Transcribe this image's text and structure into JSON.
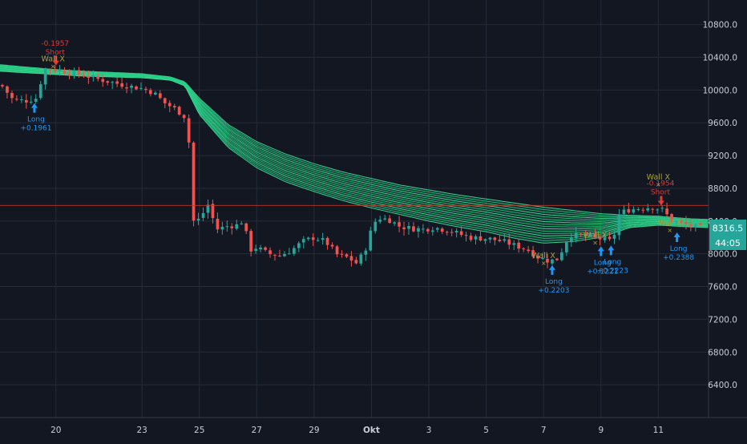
{
  "colors": {
    "background": "#131722",
    "grid": "#262b38",
    "up": "#26a69a",
    "down": "#ef5350",
    "ribbon": "#21c47d",
    "ribbon_light": "#3ee39a",
    "axis_text": "#c9cdd6",
    "price_line": "#c0392b",
    "long_label": "#2196f3",
    "short_label": "#e53935",
    "wall_label": "#a8a23a",
    "last_price_bg": "#26a69a"
  },
  "chart_data": {
    "type": "candlestick",
    "title": "",
    "ylim": [
      6000,
      11100
    ],
    "y_ticks": [
      {
        "value": 10800,
        "label": "10800.0"
      },
      {
        "value": 10400,
        "label": "10400.0"
      },
      {
        "value": 10000,
        "label": "10000.0"
      },
      {
        "value": 9600,
        "label": "9600.0"
      },
      {
        "value": 9200,
        "label": "9200.0"
      },
      {
        "value": 8800,
        "label": "8800.0"
      },
      {
        "value": 8400,
        "label": "8400.0"
      },
      {
        "value": 8000,
        "label": "8000.0"
      },
      {
        "value": 7600,
        "label": "7600.0"
      },
      {
        "value": 7200,
        "label": "7200.0"
      },
      {
        "value": 6800,
        "label": "6800.0"
      },
      {
        "value": 6400,
        "label": "6400.0"
      }
    ],
    "x_ticks": [
      {
        "day": 20,
        "label": "20"
      },
      {
        "day": 23,
        "label": "23"
      },
      {
        "day": 25,
        "label": "25"
      },
      {
        "day": 27,
        "label": "27"
      },
      {
        "day": 29,
        "label": "29"
      },
      {
        "day": 31,
        "label": "Okt"
      },
      {
        "day": 33,
        "label": "3"
      },
      {
        "day": 35,
        "label": "5"
      },
      {
        "day": 37,
        "label": "7"
      },
      {
        "day": 39,
        "label": "9"
      },
      {
        "day": 41,
        "label": "11"
      }
    ],
    "xlim": [
      18.05,
      42.75
    ],
    "price_line": 8590,
    "last_price": {
      "label": "8316.5",
      "timer": "44:05"
    },
    "close_path": [
      [
        18.1,
        10060
      ],
      [
        18.5,
        9880
      ],
      [
        19.0,
        9870
      ],
      [
        19.3,
        9900
      ],
      [
        19.6,
        10250
      ],
      [
        19.8,
        10260
      ],
      [
        20.1,
        10240
      ],
      [
        20.4,
        10220
      ],
      [
        21.0,
        10180
      ],
      [
        21.5,
        10130
      ],
      [
        22.0,
        10090
      ],
      [
        22.5,
        10050
      ],
      [
        23.0,
        10020
      ],
      [
        23.4,
        9970
      ],
      [
        23.8,
        9840
      ],
      [
        24.2,
        9760
      ],
      [
        24.6,
        9640
      ],
      [
        24.75,
        8400
      ],
      [
        25.0,
        8420
      ],
      [
        25.3,
        8600
      ],
      [
        25.6,
        8300
      ],
      [
        26.0,
        8340
      ],
      [
        26.3,
        8350
      ],
      [
        26.5,
        8400
      ],
      [
        26.8,
        8050
      ],
      [
        27.0,
        8080
      ],
      [
        27.4,
        8000
      ],
      [
        27.8,
        7980
      ],
      [
        28.2,
        8040
      ],
      [
        28.6,
        8150
      ],
      [
        29.0,
        8200
      ],
      [
        29.4,
        8150
      ],
      [
        29.8,
        7990
      ],
      [
        30.2,
        7950
      ],
      [
        30.5,
        7880
      ],
      [
        30.8,
        8070
      ],
      [
        31.0,
        8300
      ],
      [
        31.2,
        8440
      ],
      [
        31.6,
        8420
      ],
      [
        32.0,
        8330
      ],
      [
        32.4,
        8310
      ],
      [
        32.8,
        8300
      ],
      [
        33.2,
        8320
      ],
      [
        33.6,
        8290
      ],
      [
        34.0,
        8250
      ],
      [
        34.4,
        8200
      ],
      [
        34.8,
        8190
      ],
      [
        35.2,
        8180
      ],
      [
        35.6,
        8150
      ],
      [
        36.0,
        8100
      ],
      [
        36.4,
        8060
      ],
      [
        36.8,
        7960
      ],
      [
        37.2,
        7910
      ],
      [
        37.5,
        7940
      ],
      [
        37.9,
        8230
      ],
      [
        38.3,
        8220
      ],
      [
        38.7,
        8210
      ],
      [
        39.1,
        8170
      ],
      [
        39.4,
        8150
      ],
      [
        39.65,
        8500
      ],
      [
        40.0,
        8540
      ],
      [
        40.4,
        8560
      ],
      [
        40.8,
        8570
      ],
      [
        41.2,
        8530
      ],
      [
        41.4,
        8420
      ],
      [
        41.7,
        8380
      ],
      [
        42.0,
        8350
      ],
      [
        42.3,
        8330
      ],
      [
        42.5,
        8316
      ]
    ],
    "ribbon_top": [
      [
        18.05,
        10310
      ],
      [
        19.0,
        10280
      ],
      [
        20.0,
        10250
      ],
      [
        21.0,
        10230
      ],
      [
        22.0,
        10215
      ],
      [
        23.0,
        10200
      ],
      [
        24.0,
        10160
      ],
      [
        24.5,
        10100
      ],
      [
        25.0,
        9900
      ],
      [
        26.0,
        9580
      ],
      [
        27.0,
        9370
      ],
      [
        28.0,
        9220
      ],
      [
        29.0,
        9100
      ],
      [
        30.0,
        9000
      ],
      [
        31.0,
        8920
      ],
      [
        32.0,
        8840
      ],
      [
        33.0,
        8780
      ],
      [
        34.0,
        8720
      ],
      [
        35.0,
        8670
      ],
      [
        36.0,
        8620
      ],
      [
        37.0,
        8570
      ],
      [
        38.0,
        8530
      ],
      [
        39.0,
        8490
      ],
      [
        40.0,
        8470
      ],
      [
        41.0,
        8460
      ],
      [
        42.0,
        8430
      ],
      [
        42.75,
        8420
      ]
    ],
    "ribbon_bottom": [
      [
        18.05,
        10230
      ],
      [
        19.0,
        10210
      ],
      [
        20.0,
        10190
      ],
      [
        21.0,
        10170
      ],
      [
        22.0,
        10160
      ],
      [
        23.0,
        10150
      ],
      [
        24.0,
        10120
      ],
      [
        24.5,
        10050
      ],
      [
        25.0,
        9700
      ],
      [
        26.0,
        9300
      ],
      [
        27.0,
        9050
      ],
      [
        28.0,
        8880
      ],
      [
        29.0,
        8760
      ],
      [
        30.0,
        8650
      ],
      [
        31.0,
        8560
      ],
      [
        32.0,
        8480
      ],
      [
        33.0,
        8400
      ],
      [
        34.0,
        8330
      ],
      [
        35.0,
        8270
      ],
      [
        36.0,
        8190
      ],
      [
        37.0,
        8130
      ],
      [
        38.0,
        8150
      ],
      [
        39.0,
        8200
      ],
      [
        40.0,
        8320
      ],
      [
        41.0,
        8350
      ],
      [
        42.0,
        8330
      ],
      [
        42.75,
        8320
      ]
    ],
    "ribbon_line_count": 16,
    "signals": [
      {
        "kind": "long",
        "day": 19.25,
        "price": 9880,
        "value": "+0.1961",
        "label": "Long"
      },
      {
        "kind": "short",
        "day": 20.0,
        "price": 10280,
        "value": "-0.1957",
        "label": "Short"
      },
      {
        "kind": "wall",
        "day": 19.9,
        "price": 10290,
        "label": "Wall X"
      },
      {
        "kind": "long",
        "day": 37.3,
        "price": 7900,
        "value": "+0.2203",
        "label": "Long"
      },
      {
        "kind": "wall",
        "day": 37.0,
        "price": 7890,
        "label": "Wall X"
      },
      {
        "kind": "long",
        "day": 39.0,
        "price": 8130,
        "value": "+0.1221",
        "label": "Long"
      },
      {
        "kind": "wall",
        "day": 38.8,
        "price": 8140,
        "label": "Wall X"
      },
      {
        "kind": "long",
        "day": 39.35,
        "price": 8140,
        "value": "+0.2223",
        "label": "Long"
      },
      {
        "kind": "short",
        "day": 41.1,
        "price": 8570,
        "value": "-0.1954",
        "label": "Short"
      },
      {
        "kind": "wall",
        "day": 41.0,
        "price": 8850,
        "label": "Wall X"
      },
      {
        "kind": "long",
        "day": 41.65,
        "price": 8300,
        "value": "+0.2388",
        "label": "Long"
      },
      {
        "kind": "wall",
        "day": 41.4,
        "price": 8290,
        "label": "Wall X"
      }
    ]
  }
}
